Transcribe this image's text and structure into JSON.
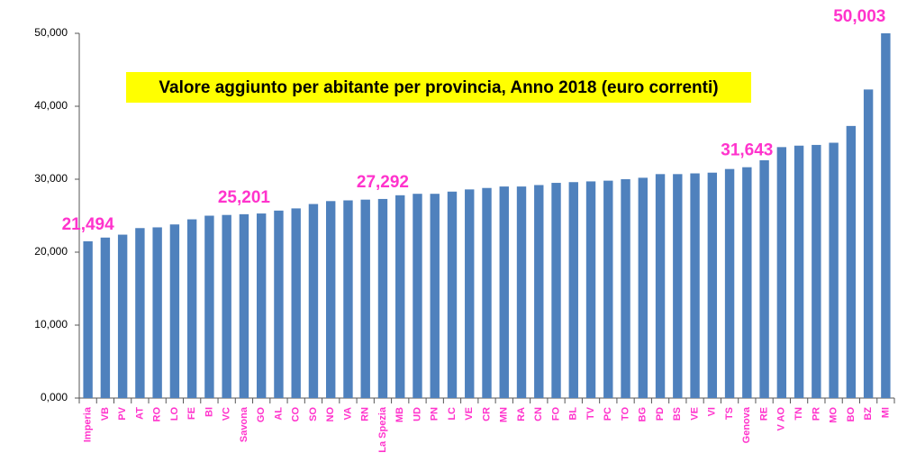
{
  "chart_data": {
    "type": "bar",
    "title": "Valore aggiunto per abitante per provincia, Anno 2018 (euro correnti)",
    "categories": [
      "Imperia",
      "VB",
      "PV",
      "AT",
      "RO",
      "LO",
      "FE",
      "BI",
      "VC",
      "Savona",
      "GO",
      "AL",
      "CO",
      "SO",
      "NO",
      "VA",
      "RN",
      "La Spezia",
      "MB",
      "UD",
      "PN",
      "LC",
      "VE",
      "CR",
      "MN",
      "RA",
      "CN",
      "FO",
      "BL",
      "TV",
      "PC",
      "TO",
      "BG",
      "PD",
      "BS",
      "VE",
      "VI",
      "TS",
      "Genova",
      "RE",
      "V AO",
      "TN",
      "PR",
      "MO",
      "BO",
      "BZ",
      "MI"
    ],
    "values": [
      21494,
      22000,
      22400,
      23300,
      23400,
      23800,
      24500,
      25000,
      25100,
      25201,
      25300,
      25700,
      26000,
      26600,
      27000,
      27100,
      27200,
      27292,
      27800,
      28000,
      28000,
      28300,
      28600,
      28800,
      29000,
      29000,
      29200,
      29500,
      29600,
      29700,
      29800,
      30000,
      30200,
      30700,
      30700,
      30800,
      30900,
      31400,
      31643,
      32600,
      34400,
      34600,
      34700,
      35000,
      37300,
      42300,
      50003
    ],
    "value_labels": [
      "21,494",
      null,
      null,
      null,
      null,
      null,
      null,
      null,
      null,
      "25,201",
      null,
      null,
      null,
      null,
      null,
      null,
      null,
      "27,292",
      null,
      null,
      null,
      null,
      null,
      null,
      null,
      null,
      null,
      null,
      null,
      null,
      null,
      null,
      null,
      null,
      null,
      null,
      null,
      null,
      "31,643",
      null,
      null,
      null,
      null,
      null,
      null,
      null,
      "50,003"
    ],
    "color": "#4f81bd",
    "ylim": [
      0,
      50000
    ],
    "yticks": [
      {
        "value": 0,
        "label": "0,000"
      },
      {
        "value": 10000,
        "label": "10,000"
      },
      {
        "value": 20000,
        "label": "20,000"
      },
      {
        "value": 30000,
        "label": "30,000"
      },
      {
        "value": 40000,
        "label": "40,000"
      },
      {
        "value": 50000,
        "label": "50,000"
      }
    ],
    "grid": false
  }
}
